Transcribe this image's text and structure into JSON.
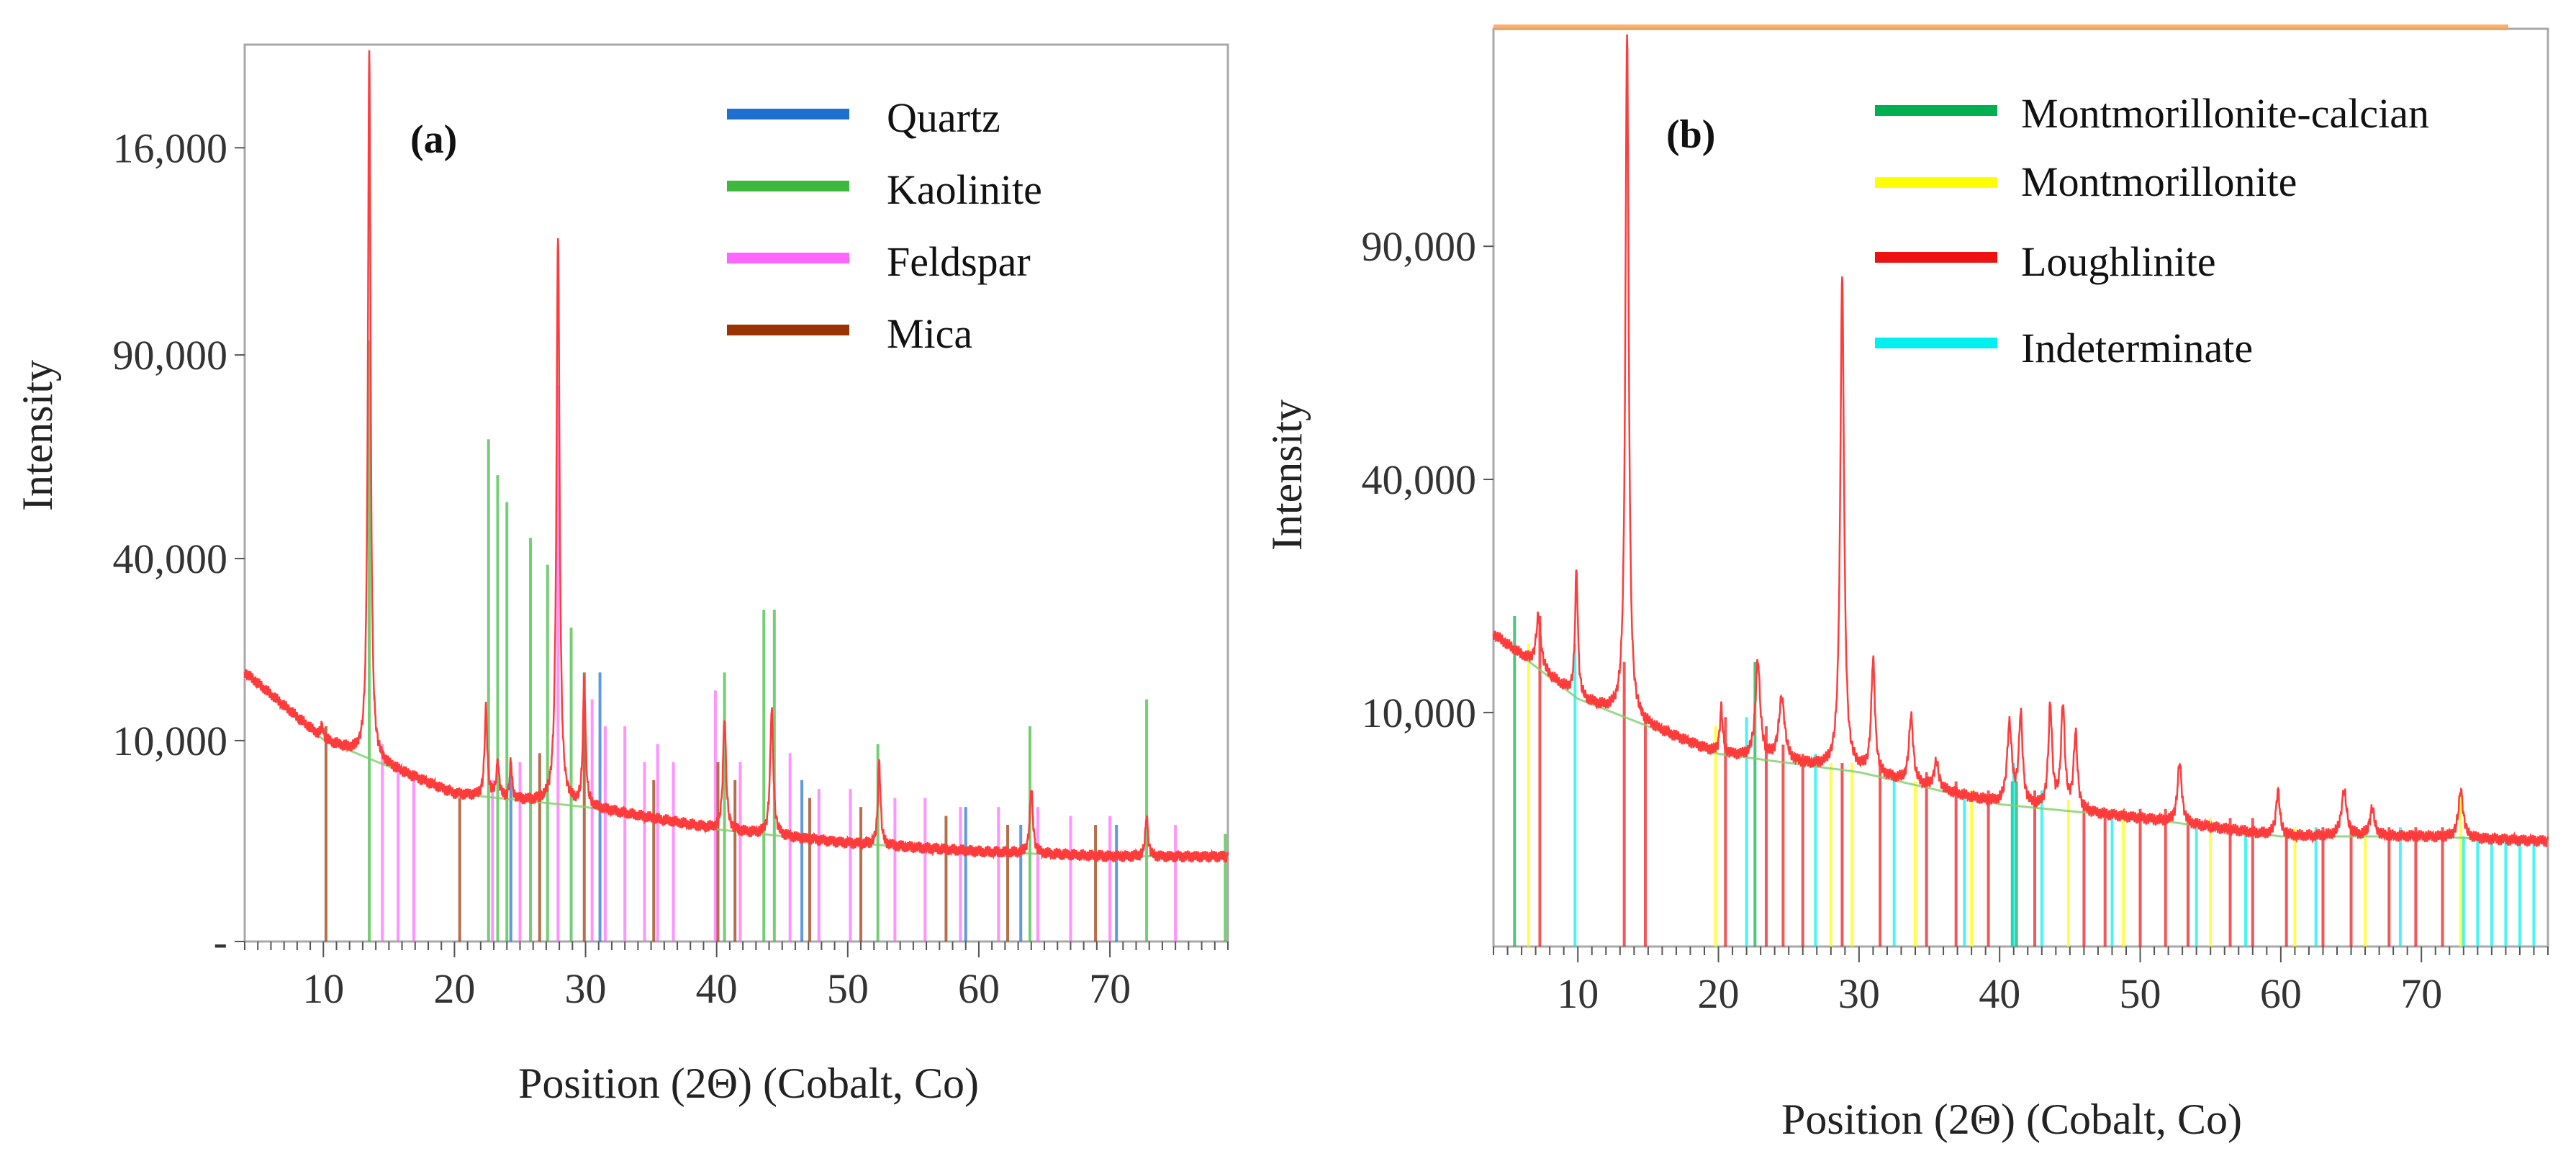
{
  "chart_data": [
    {
      "type": "line",
      "panel_label": "(a)",
      "xlabel": "Position (2Θ) (Cobalt, Co)",
      "ylabel": "Intensity",
      "xlim": [
        4,
        79
      ],
      "x_ticks": [
        10,
        20,
        30,
        40,
        50,
        60,
        70
      ],
      "x_tick_labels": [
        "10",
        "20",
        "30",
        "40",
        "50",
        "60",
        "70"
      ],
      "y_ticks": [
        {
          "label": "16,000",
          "frac": 0.885
        },
        {
          "label": "90,000",
          "frac": 0.654
        },
        {
          "label": "40,000",
          "frac": 0.427
        },
        {
          "label": "10,000",
          "frac": 0.224
        },
        {
          "label": "-",
          "frac": 0.0
        }
      ],
      "legend": [
        {
          "name": "Quartz",
          "color": "#1f6fd1"
        },
        {
          "name": "Kaolinite",
          "color": "#3cb93c"
        },
        {
          "name": "Feldspar",
          "color": "#ff66ff"
        },
        {
          "name": "Mica",
          "color": "#9a3300"
        }
      ],
      "background": {
        "x": [
          4,
          10,
          20,
          30,
          40,
          50,
          60,
          70,
          79
        ],
        "y": [
          0.3,
          0.225,
          0.165,
          0.15,
          0.125,
          0.11,
          0.1,
          0.095,
          0.095
        ]
      },
      "pattern_color": "#ff3b3b",
      "peaks": [
        {
          "x": 9.9,
          "h": 0.24,
          "w": 0.12
        },
        {
          "x": 13.5,
          "h": 1.0,
          "w": 0.12
        },
        {
          "x": 20.2,
          "h": 0.16,
          "w": 0.1
        },
        {
          "x": 22.4,
          "h": 0.26,
          "w": 0.12
        },
        {
          "x": 23.3,
          "h": 0.2,
          "w": 0.12
        },
        {
          "x": 24.3,
          "h": 0.2,
          "w": 0.1
        },
        {
          "x": 27.9,
          "h": 0.79,
          "w": 0.14
        },
        {
          "x": 29.9,
          "h": 0.29,
          "w": 0.12
        },
        {
          "x": 40.6,
          "h": 0.25,
          "w": 0.14
        },
        {
          "x": 44.2,
          "h": 0.26,
          "w": 0.14
        },
        {
          "x": 52.4,
          "h": 0.2,
          "w": 0.12
        },
        {
          "x": 64.0,
          "h": 0.17,
          "w": 0.14
        },
        {
          "x": 72.8,
          "h": 0.14,
          "w": 0.12
        }
      ],
      "phase_lines": [
        {
          "phase": "Kaolinite",
          "positions": [
            13.5,
            22.6,
            23.3,
            24.0,
            25.8,
            27.1,
            28.9,
            40.6,
            43.6,
            44.4,
            52.3,
            63.9,
            72.8,
            78.8
          ],
          "heights": [
            0.67,
            0.56,
            0.52,
            0.49,
            0.45,
            0.42,
            0.35,
            0.3,
            0.37,
            0.37,
            0.22,
            0.24,
            0.27,
            0.12
          ]
        },
        {
          "phase": "Feldspar",
          "positions": [
            14.5,
            15.7,
            16.9,
            22.9,
            25.0,
            27.9,
            30.5,
            31.5,
            33.0,
            34.5,
            35.5,
            36.7,
            39.9,
            41.8,
            45.6,
            47.8,
            50.2,
            53.6,
            55.9,
            58.6,
            61.5,
            64.5,
            67.0,
            70.0,
            75.0
          ],
          "heights": [
            0.22,
            0.2,
            0.18,
            0.18,
            0.2,
            0.62,
            0.27,
            0.24,
            0.24,
            0.2,
            0.22,
            0.2,
            0.28,
            0.2,
            0.21,
            0.17,
            0.17,
            0.16,
            0.16,
            0.15,
            0.15,
            0.15,
            0.14,
            0.14,
            0.13
          ]
        },
        {
          "phase": "Quartz",
          "positions": [
            24.3,
            31.1,
            46.5,
            59.0,
            63.2,
            70.5
          ],
          "heights": [
            0.2,
            0.3,
            0.18,
            0.15,
            0.13,
            0.13
          ]
        },
        {
          "phase": "Mica",
          "positions": [
            10.2,
            20.4,
            26.5,
            29.9,
            35.2,
            40.1,
            41.4,
            47.1,
            51.0,
            57.5,
            62.2,
            68.9
          ],
          "heights": [
            0.24,
            0.16,
            0.21,
            0.3,
            0.18,
            0.2,
            0.18,
            0.16,
            0.15,
            0.14,
            0.13,
            0.13
          ]
        }
      ]
    },
    {
      "type": "line",
      "panel_label": "(b)",
      "xlabel": "Position (2Θ) (Cobalt, Co)",
      "ylabel": "Intensity",
      "xlim": [
        4,
        79
      ],
      "x_ticks": [
        10,
        20,
        30,
        40,
        50,
        60,
        70
      ],
      "x_tick_labels": [
        "10",
        "20",
        "30",
        "40",
        "50",
        "60",
        "70"
      ],
      "y_ticks": [
        {
          "label": "90,000",
          "frac": 0.763
        },
        {
          "label": "40,000",
          "frac": 0.509
        },
        {
          "label": "10,000",
          "frac": 0.255
        }
      ],
      "legend": [
        {
          "name": "Montmorillonite-calcian",
          "color": "#00b050"
        },
        {
          "name": "Montmorillonite",
          "color": "#ffff00"
        },
        {
          "name": "Loughlinite",
          "color": "#ee1111"
        },
        {
          "name": "Indeterminate",
          "color": "#00f0f0"
        }
      ],
      "background": {
        "x": [
          4,
          10,
          20,
          30,
          40,
          50,
          60,
          70,
          79
        ],
        "y": [
          0.34,
          0.27,
          0.21,
          0.19,
          0.155,
          0.14,
          0.12,
          0.12,
          0.115
        ]
      },
      "pattern_color": "#ff3b3b",
      "peaks": [
        {
          "x": 7.2,
          "h": 0.36,
          "w": 0.2
        },
        {
          "x": 9.9,
          "h": 0.41,
          "w": 0.12
        },
        {
          "x": 13.5,
          "h": 1.0,
          "w": 0.14
        },
        {
          "x": 20.2,
          "h": 0.26,
          "w": 0.12
        },
        {
          "x": 22.8,
          "h": 0.31,
          "w": 0.2
        },
        {
          "x": 24.5,
          "h": 0.27,
          "w": 0.25
        },
        {
          "x": 28.8,
          "h": 0.73,
          "w": 0.16
        },
        {
          "x": 31.0,
          "h": 0.31,
          "w": 0.16
        },
        {
          "x": 33.7,
          "h": 0.25,
          "w": 0.18
        },
        {
          "x": 35.5,
          "h": 0.2,
          "w": 0.2
        },
        {
          "x": 40.7,
          "h": 0.24,
          "w": 0.2
        },
        {
          "x": 41.5,
          "h": 0.25,
          "w": 0.16
        },
        {
          "x": 43.6,
          "h": 0.26,
          "w": 0.16
        },
        {
          "x": 44.5,
          "h": 0.26,
          "w": 0.16
        },
        {
          "x": 45.4,
          "h": 0.23,
          "w": 0.16
        },
        {
          "x": 52.8,
          "h": 0.2,
          "w": 0.18
        },
        {
          "x": 59.8,
          "h": 0.17,
          "w": 0.16
        },
        {
          "x": 64.5,
          "h": 0.17,
          "w": 0.22
        },
        {
          "x": 66.5,
          "h": 0.15,
          "w": 0.2
        },
        {
          "x": 72.8,
          "h": 0.17,
          "w": 0.2
        }
      ],
      "phase_lines": [
        {
          "phase": "Montmorillonite-calcian",
          "positions": [
            5.5,
            22.6,
            40.9,
            41.2
          ],
          "heights": [
            0.36,
            0.31,
            0.18,
            0.18
          ]
        },
        {
          "phase": "Montmorillonite",
          "positions": [
            6.5,
            19.8,
            28.0,
            29.5,
            34.0,
            38.0,
            44.9,
            48.8,
            55.0,
            61.0,
            66.0,
            72.8
          ],
          "heights": [
            0.33,
            0.24,
            0.2,
            0.2,
            0.18,
            0.17,
            0.16,
            0.15,
            0.14,
            0.13,
            0.13,
            0.17
          ]
        },
        {
          "phase": "Loughlinite",
          "positions": [
            7.3,
            13.3,
            14.8,
            20.5,
            23.4,
            24.6,
            26.0,
            28.8,
            31.5,
            34.8,
            36.9,
            39.2,
            42.5,
            46.0,
            47.5,
            50.0,
            51.8,
            53.4,
            56.4,
            58.0,
            60.4,
            63.0,
            65.0,
            67.7,
            69.6,
            71.5
          ],
          "heights": [
            0.36,
            0.31,
            0.25,
            0.25,
            0.24,
            0.22,
            0.21,
            0.2,
            0.2,
            0.19,
            0.18,
            0.17,
            0.17,
            0.16,
            0.15,
            0.15,
            0.15,
            0.14,
            0.14,
            0.14,
            0.13,
            0.13,
            0.13,
            0.13,
            0.13,
            0.13
          ]
        },
        {
          "phase": "Indeterminate",
          "positions": [
            9.8,
            22.0,
            26.9,
            32.5,
            37.5,
            41.0,
            43.0,
            48.0,
            54.0,
            57.5,
            62.5,
            68.5,
            73.0,
            74.0,
            75.0,
            76.0,
            77.0,
            78.0
          ],
          "heights": [
            0.33,
            0.25,
            0.21,
            0.18,
            0.17,
            0.2,
            0.17,
            0.15,
            0.14,
            0.13,
            0.13,
            0.13,
            0.12,
            0.12,
            0.12,
            0.12,
            0.12,
            0.12
          ]
        }
      ]
    }
  ]
}
